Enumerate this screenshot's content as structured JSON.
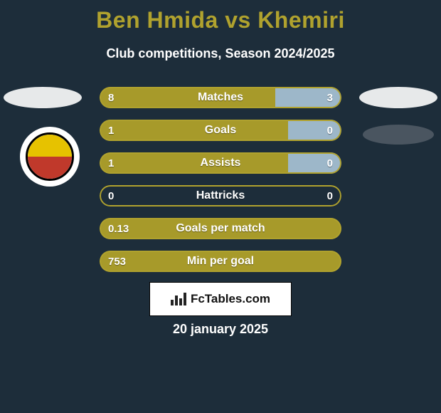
{
  "background_color": "#1d2d3a",
  "title": {
    "text_left": "Ben Hmida",
    "vs": " vs ",
    "text_right": "Khemiri",
    "color": "#b0a22e",
    "fontsize": 32
  },
  "subtitle": {
    "text": "Club competitions, Season 2024/2025",
    "color": "#ffffff",
    "fontsize": 18
  },
  "badges": {
    "top_left_color": "#e7e9ea",
    "top_right_color": "#e7e9ea",
    "right2_color": "#4a5560"
  },
  "club_logo": {
    "ring_bg": "#ffffff",
    "top_color": "#e6c200",
    "bottom_color": "#c0392b",
    "outline": "#000000"
  },
  "stats": {
    "left_color": "#a79a2a",
    "right_color": "#9db7c9",
    "border_color": "#b0a22e",
    "empty_fill": "#1d2d3a",
    "bars": [
      {
        "label": "Matches",
        "left": "8",
        "right": "3",
        "left_pct": 72.7,
        "right_pct": 27.3
      },
      {
        "label": "Goals",
        "left": "1",
        "right": "0",
        "left_pct": 78.0,
        "right_pct": 22.0
      },
      {
        "label": "Assists",
        "left": "1",
        "right": "0",
        "left_pct": 78.0,
        "right_pct": 22.0
      },
      {
        "label": "Hattricks",
        "left": "0",
        "right": "0",
        "left_pct": 0.0,
        "right_pct": 0.0
      },
      {
        "label": "Goals per match",
        "left": "0.13",
        "right": "",
        "left_pct": 100.0,
        "right_pct": 0.0
      },
      {
        "label": "Min per goal",
        "left": "753",
        "right": "",
        "left_pct": 100.0,
        "right_pct": 0.0
      }
    ]
  },
  "fctables": {
    "text": "FcTables.com",
    "bg": "#ffffff",
    "bar_color": "#222222"
  },
  "date": {
    "text": "20 january 2025",
    "color": "#ffffff",
    "fontsize": 18
  }
}
